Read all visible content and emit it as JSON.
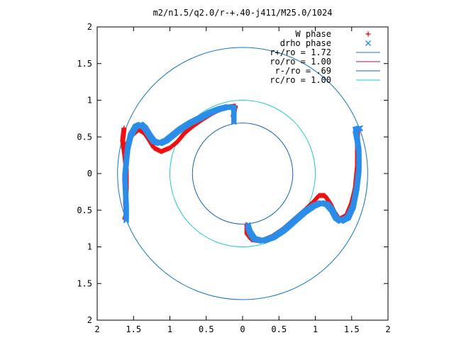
{
  "chart_data": {
    "type": "scatter",
    "title": "m2/n1.5/q2.0/r-+.40-j411/M25.0/1024",
    "xlabel": "",
    "ylabel": "",
    "xlim": [
      -2,
      2
    ],
    "ylim": [
      -2,
      2
    ],
    "x_tick_labels": [
      "2",
      "1.5",
      "1",
      "0.5",
      "0",
      "0.5",
      "1",
      "1.5",
      "2"
    ],
    "y_tick_labels": [
      "2",
      "1.5",
      "1",
      "0.5",
      "0",
      "0.5",
      "1",
      "1.5",
      "2"
    ],
    "x_tick_values": [
      -2,
      -1.5,
      -1,
      -0.5,
      0,
      0.5,
      1,
      1.5,
      2
    ],
    "y_tick_values": [
      2,
      1.5,
      1,
      0.5,
      0,
      -0.5,
      -1,
      -1.5,
      -2
    ],
    "grid": false,
    "legend_position": "top-right",
    "colors": {
      "w_phase": "#ee1111",
      "drho_phase": "#2a8de8",
      "r_plus": "#1177cc",
      "r_o": "#aa1166",
      "r_minus": "#1166bb",
      "r_c": "#22cccc"
    },
    "circles": [
      {
        "name": "r+/ro = 1.72",
        "radius": 1.72,
        "color": "#1177cc"
      },
      {
        "name": "ro/ro = 1.00",
        "radius": 1.0,
        "color": "#aa1166"
      },
      {
        "name": "r-/ro = .69",
        "radius": 0.69,
        "color": "#1166bb"
      },
      {
        "name": "rc/ro = 1.00",
        "radius": 1.0,
        "color": "#22cccc"
      }
    ],
    "series": [
      {
        "name": "W phase",
        "marker": "+",
        "color": "#ee1111",
        "curves": [
          [
            [
              -1.63,
              0.62
            ],
            [
              -1.65,
              0.45
            ],
            [
              -1.62,
              0.25
            ],
            [
              -1.6,
              0.05
            ],
            [
              -1.6,
              -0.2
            ],
            [
              -1.61,
              -0.4
            ],
            [
              -1.6,
              -0.55
            ],
            [
              -1.62,
              -0.62
            ]
          ],
          [
            [
              -1.64,
              0.35
            ],
            [
              -1.58,
              0.42
            ],
            [
              -1.52,
              0.52
            ],
            [
              -1.43,
              0.6
            ],
            [
              -1.35,
              0.55
            ],
            [
              -1.28,
              0.45
            ],
            [
              -1.22,
              0.35
            ],
            [
              -1.12,
              0.3
            ],
            [
              -1.0,
              0.35
            ],
            [
              -0.9,
              0.43
            ],
            [
              -0.8,
              0.55
            ],
            [
              -0.68,
              0.65
            ],
            [
              -0.55,
              0.74
            ],
            [
              -0.42,
              0.82
            ],
            [
              -0.3,
              0.88
            ],
            [
              -0.18,
              0.91
            ],
            [
              -0.1,
              0.92
            ],
            [
              -0.13,
              0.78
            ]
          ],
          [
            [
              0.06,
              -0.7
            ],
            [
              0.06,
              -0.82
            ],
            [
              0.12,
              -0.9
            ],
            [
              0.25,
              -0.92
            ],
            [
              0.4,
              -0.86
            ],
            [
              0.55,
              -0.76
            ],
            [
              0.7,
              -0.63
            ],
            [
              0.85,
              -0.5
            ],
            [
              0.98,
              -0.38
            ],
            [
              1.05,
              -0.3
            ],
            [
              1.13,
              -0.3
            ],
            [
              1.2,
              -0.4
            ],
            [
              1.26,
              -0.52
            ],
            [
              1.33,
              -0.62
            ],
            [
              1.43,
              -0.57
            ],
            [
              1.5,
              -0.4
            ],
            [
              1.55,
              -0.2
            ],
            [
              1.58,
              0.1
            ],
            [
              1.58,
              0.35
            ],
            [
              1.58,
              0.6
            ]
          ]
        ]
      },
      {
        "name": "drho phase",
        "marker": "x",
        "color": "#2a8de8",
        "curves": [
          [
            [
              -1.6,
              -0.64
            ],
            [
              -1.6,
              -0.45
            ],
            [
              -1.61,
              -0.25
            ],
            [
              -1.62,
              -0.05
            ],
            [
              -1.6,
              0.15
            ],
            [
              -1.58,
              0.35
            ],
            [
              -1.54,
              0.52
            ],
            [
              -1.47,
              0.64
            ],
            [
              -1.4,
              0.67
            ],
            [
              -1.34,
              0.62
            ],
            [
              -1.28,
              0.52
            ],
            [
              -1.22,
              0.44
            ],
            [
              -1.14,
              0.41
            ],
            [
              -1.05,
              0.45
            ],
            [
              -0.95,
              0.53
            ],
            [
              -0.85,
              0.61
            ],
            [
              -0.72,
              0.69
            ],
            [
              -0.58,
              0.76
            ],
            [
              -0.45,
              0.83
            ],
            [
              -0.32,
              0.88
            ],
            [
              -0.2,
              0.91
            ],
            [
              -0.12,
              0.9
            ],
            [
              -0.12,
              0.8
            ],
            [
              -0.12,
              0.7
            ]
          ],
          [
            [
              0.07,
              -0.7
            ],
            [
              0.1,
              -0.8
            ],
            [
              0.16,
              -0.89
            ],
            [
              0.28,
              -0.92
            ],
            [
              0.42,
              -0.87
            ],
            [
              0.57,
              -0.77
            ],
            [
              0.72,
              -0.64
            ],
            [
              0.86,
              -0.52
            ],
            [
              0.98,
              -0.44
            ],
            [
              1.08,
              -0.4
            ],
            [
              1.16,
              -0.42
            ],
            [
              1.23,
              -0.5
            ],
            [
              1.28,
              -0.6
            ],
            [
              1.35,
              -0.65
            ],
            [
              1.45,
              -0.6
            ],
            [
              1.52,
              -0.45
            ],
            [
              1.57,
              -0.2
            ],
            [
              1.6,
              0.05
            ],
            [
              1.6,
              0.3
            ],
            [
              1.57,
              0.5
            ],
            [
              1.55,
              0.6
            ],
            [
              1.62,
              0.62
            ]
          ]
        ]
      }
    ]
  }
}
